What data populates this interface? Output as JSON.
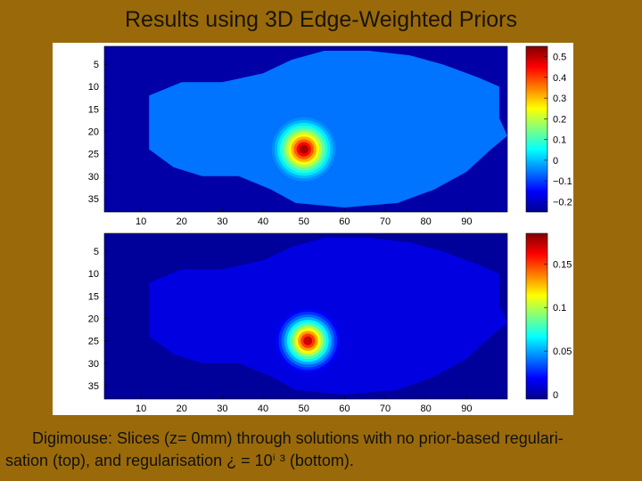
{
  "slide": {
    "title": "Results using 3D Edge-Weighted Priors",
    "caption_line1": "Digimouse: Slices (z= 0mm) through solutions with no prior-based regulari-",
    "caption_line2": "sation (top), and regularisation ¿ = 10ⁱ ³ (bottom)."
  },
  "chart_data": [
    {
      "type": "heatmap",
      "title": "",
      "xlabel": "",
      "ylabel": "",
      "xlim": [
        1,
        100
      ],
      "ylim": [
        1,
        38
      ],
      "x_ticks": [
        10,
        20,
        30,
        40,
        50,
        60,
        70,
        80,
        90
      ],
      "y_ticks": [
        5,
        10,
        15,
        20,
        25,
        30,
        35
      ],
      "colormap": "jet",
      "clim": [
        -0.25,
        0.55
      ],
      "colorbar_ticks": [
        0.5,
        0.4,
        0.3,
        0.2,
        0.1,
        0,
        -0.1,
        -0.2
      ],
      "colorbar_labels": [
        "0.5",
        "0.4",
        "0.3",
        "0.2",
        "0.1",
        "0",
        "−0.1",
        "−0.2"
      ],
      "background_value": -0.22,
      "body_value": -0.06,
      "hotspot": {
        "x": 50,
        "y": 24,
        "peak": 0.52
      }
    },
    {
      "type": "heatmap",
      "title": "",
      "xlabel": "",
      "ylabel": "",
      "xlim": [
        1,
        100
      ],
      "ylim": [
        1,
        38
      ],
      "x_ticks": [
        10,
        20,
        30,
        40,
        50,
        60,
        70,
        80,
        90
      ],
      "y_ticks": [
        5,
        10,
        15,
        20,
        25,
        30,
        35
      ],
      "colormap": "jet",
      "clim": [
        -0.005,
        0.185
      ],
      "colorbar_ticks": [
        0.15,
        0.1,
        0.05,
        0
      ],
      "colorbar_labels": [
        "0.15",
        "0.1",
        "0.05",
        "0"
      ],
      "background_value": 0.0,
      "body_value": 0.013,
      "hotspot": {
        "x": 51,
        "y": 25,
        "peak": 0.17
      }
    }
  ]
}
